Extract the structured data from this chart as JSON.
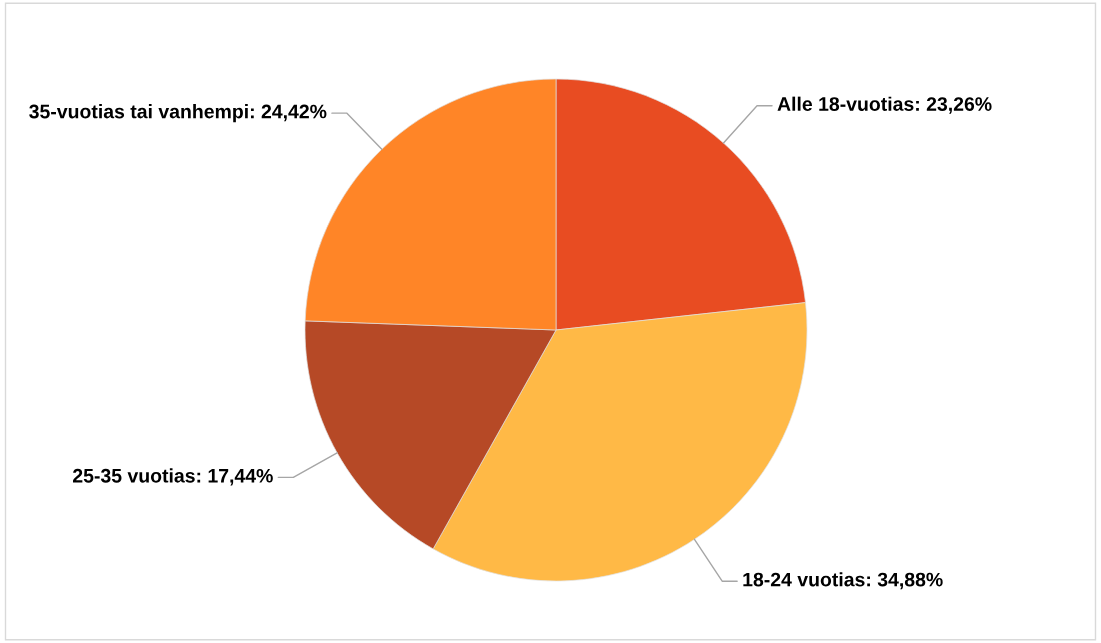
{
  "chart_data": {
    "type": "pie",
    "categories": [
      "Alle 18-vuotias",
      "18-24 vuotias",
      "25-35 vuotias",
      "35-vuotias tai vanhempi"
    ],
    "values": [
      23.26,
      34.88,
      17.44,
      24.42
    ],
    "value_labels": [
      "23,26%",
      "34,88%",
      "17,44%",
      "24,42%"
    ],
    "colors": [
      "#e84c22",
      "#ffb946",
      "#b64926",
      "#ff8527"
    ]
  }
}
